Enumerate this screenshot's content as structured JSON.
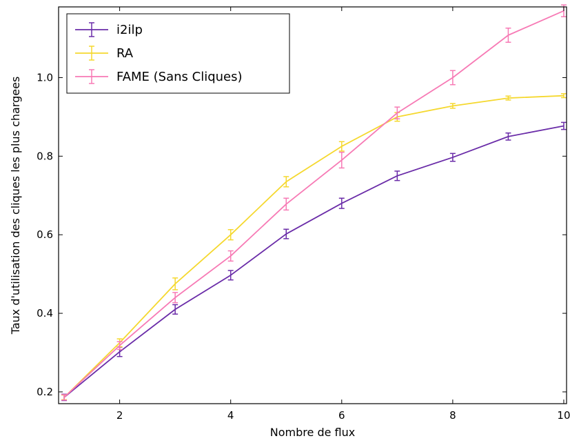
{
  "chart_data": {
    "type": "line",
    "xlabel": "Nombre de flux",
    "ylabel": "Taux d'utilisation des cliques les plus chargees",
    "xlim": [
      0.9,
      10.05
    ],
    "ylim": [
      0.17,
      1.18
    ],
    "xticks": [
      2,
      4,
      6,
      8,
      10
    ],
    "yticks": [
      0.2,
      0.4,
      0.6,
      0.8,
      1.0
    ],
    "xtick_labels": [
      "2",
      "4",
      "6",
      "8",
      "10"
    ],
    "ytick_labels": [
      "0.2",
      "0.4",
      "0.6",
      "0.8",
      "1.0"
    ],
    "grid": false,
    "legend": "top-left",
    "x": [
      1,
      2,
      3,
      4,
      5,
      6,
      7,
      8,
      9,
      10
    ],
    "series": [
      {
        "name": "i2ilp",
        "color": "#6a2ca8",
        "values": [
          0.186,
          0.302,
          0.41,
          0.497,
          0.602,
          0.68,
          0.75,
          0.797,
          0.85,
          0.877
        ],
        "errors": [
          0.008,
          0.012,
          0.012,
          0.012,
          0.012,
          0.013,
          0.012,
          0.01,
          0.009,
          0.009
        ]
      },
      {
        "name": "RA",
        "color": "#f5d82e",
        "values": [
          0.186,
          0.325,
          0.475,
          0.6,
          0.735,
          0.825,
          0.9,
          0.928,
          0.948,
          0.954
        ],
        "errors": [
          0.006,
          0.01,
          0.015,
          0.013,
          0.013,
          0.012,
          0.011,
          0.006,
          0.005,
          0.005
        ]
      },
      {
        "name": "FAME (Sans Cliques)",
        "color": "#f77ab5",
        "values": [
          0.186,
          0.318,
          0.44,
          0.546,
          0.678,
          0.79,
          0.91,
          1.0,
          1.108,
          1.17
        ],
        "errors": [
          0.007,
          0.01,
          0.013,
          0.013,
          0.015,
          0.02,
          0.015,
          0.018,
          0.018,
          0.015
        ]
      }
    ]
  }
}
